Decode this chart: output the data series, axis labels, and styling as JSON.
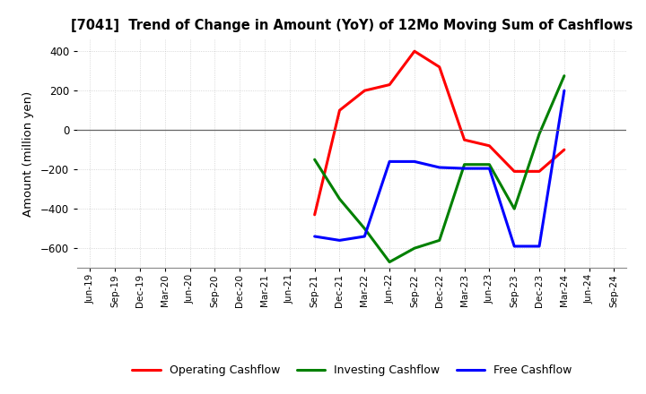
{
  "title": "[7041]  Trend of Change in Amount (YoY) of 12Mo Moving Sum of Cashflows",
  "ylabel": "Amount (million yen)",
  "x_labels": [
    "Jun-19",
    "Sep-19",
    "Dec-19",
    "Mar-20",
    "Jun-20",
    "Sep-20",
    "Dec-20",
    "Mar-21",
    "Jun-21",
    "Sep-21",
    "Dec-21",
    "Mar-22",
    "Jun-22",
    "Sep-22",
    "Dec-22",
    "Mar-23",
    "Jun-23",
    "Sep-23",
    "Dec-23",
    "Mar-24",
    "Jun-24",
    "Sep-24"
  ],
  "op_color": "#ff0000",
  "inv_color": "#008000",
  "free_color": "#0000ff",
  "ylim": [
    -700,
    460
  ],
  "yticks": [
    -600,
    -400,
    -200,
    0,
    200,
    400
  ],
  "bg_color": "#ffffff",
  "grid_color": "#bbbbbb",
  "legend_labels": [
    "Operating Cashflow",
    "Investing Cashflow",
    "Free Cashflow"
  ],
  "operating_data": {
    "9": -430,
    "10": 100,
    "11": 200,
    "12": 230,
    "13": 400,
    "14": 320,
    "15": -50,
    "16": -80,
    "17": -210,
    "18": -210,
    "19": -100
  },
  "investing_data": {
    "9": -150,
    "10": -350,
    "11": -500,
    "12": -670,
    "13": -600,
    "14": -560,
    "15": -175,
    "16": -175,
    "17": -400,
    "18": -20,
    "19": 275
  },
  "free_data": {
    "9": -540,
    "10": -560,
    "11": -540,
    "12": -160,
    "13": -160,
    "14": -190,
    "15": -195,
    "16": -195,
    "17": -590,
    "18": -590,
    "19": 200
  }
}
